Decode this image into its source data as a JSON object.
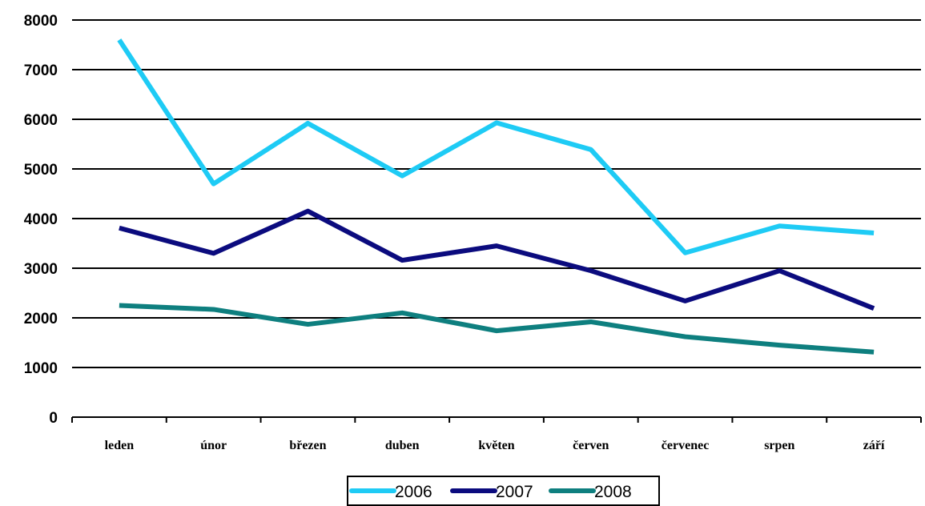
{
  "chart_data": {
    "type": "line",
    "categories": [
      "leden",
      "únor",
      "březen",
      "duben",
      "květen",
      "červen",
      "červenec",
      "srpen",
      "září"
    ],
    "series": [
      {
        "name": "2006",
        "color": "#1ECBF5",
        "values": [
          7600,
          4700,
          5920,
          4860,
          5930,
          5390,
          3310,
          3850,
          3710
        ]
      },
      {
        "name": "2007",
        "color": "#0B0B7E",
        "values": [
          3810,
          3300,
          4150,
          3160,
          3450,
          2950,
          2340,
          2950,
          2190
        ]
      },
      {
        "name": "2008",
        "color": "#0E7F7F",
        "values": [
          2250,
          2170,
          1870,
          2100,
          1740,
          1920,
          1620,
          1450,
          1310
        ]
      }
    ],
    "ylim": [
      0,
      8000
    ],
    "yticks": [
      0,
      1000,
      2000,
      3000,
      4000,
      5000,
      6000,
      7000,
      8000
    ],
    "title": "",
    "xlabel": "",
    "ylabel": "",
    "grid": "horizontal",
    "legend": "bottom-center"
  }
}
